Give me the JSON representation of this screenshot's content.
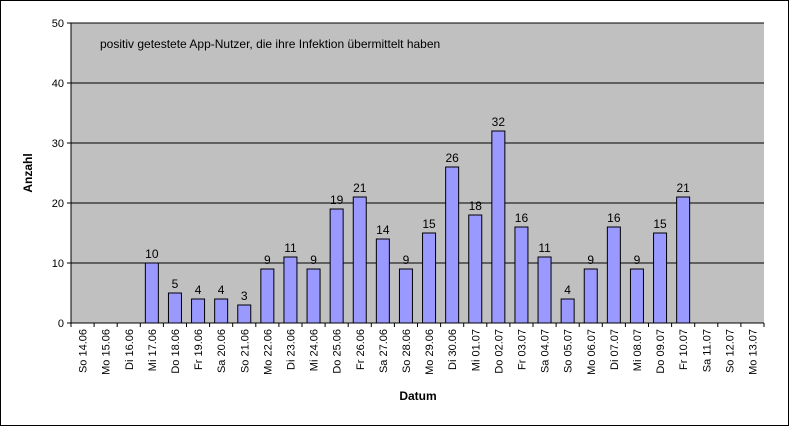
{
  "chart_data": {
    "type": "bar",
    "annotation": "positiv getestete App-Nutzer, die ihre Infektion übermittelt haben",
    "xlabel": "Datum",
    "ylabel": "Anzahl",
    "ylim": [
      0,
      50
    ],
    "yticks": [
      0,
      10,
      20,
      30,
      40,
      50
    ],
    "grid": true,
    "legend": "none",
    "categories": [
      "So 14.06",
      "Mo 15.06",
      "Di 16.06",
      "Mi 17.06",
      "Do 18.06",
      "Fr 19.06",
      "Sa 20.06",
      "So 21.06",
      "Mo 22.06",
      "Di 23.06",
      "Mi 24.06",
      "Do 25.06",
      "Fr 26.06",
      "Sa 27.06",
      "So 28.06",
      "Mo 29.06",
      "Di 30.06",
      "Mi 01.07",
      "Do 02.07",
      "Fr 03.07",
      "Sa 04.07",
      "So 05.07",
      "Mo 06.07",
      "Di 07.07",
      "Mi 08.07",
      "Do 09.07",
      "Fr 10.07",
      "Sa 11.07",
      "So 12.07",
      "Mo 13.07"
    ],
    "values": [
      null,
      null,
      null,
      10,
      5,
      4,
      4,
      3,
      9,
      11,
      9,
      19,
      21,
      14,
      9,
      15,
      26,
      18,
      32,
      16,
      11,
      4,
      9,
      16,
      9,
      15,
      21,
      null,
      null,
      null
    ],
    "colors": {
      "plot_background": "#c0c0c0",
      "bar_fill": "#9999ff",
      "bar_stroke": "#000000",
      "gridline": "#000000"
    }
  }
}
